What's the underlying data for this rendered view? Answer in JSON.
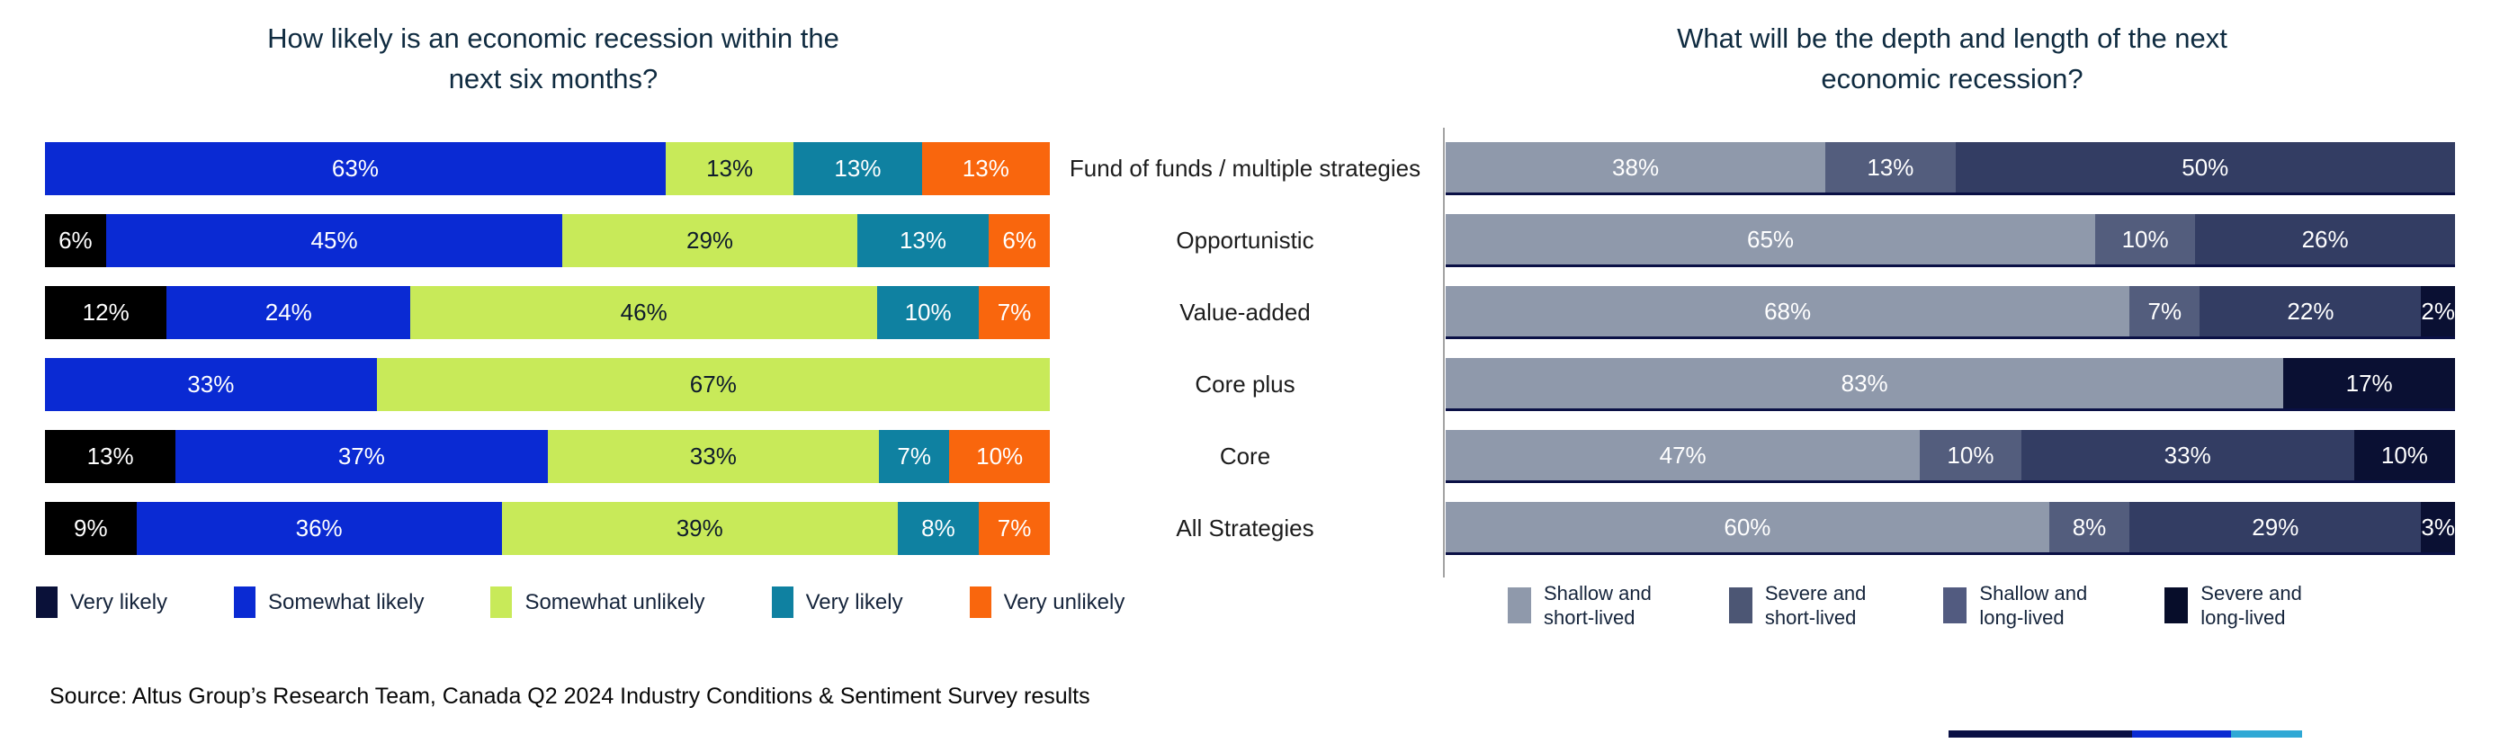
{
  "left_chart": {
    "title_line1": "How likely is an economic recession within the",
    "title_line2": "next six months?",
    "legend": [
      {
        "label": "Very likely",
        "swatch_color": "#0A1139"
      },
      {
        "label": "Somewhat likely",
        "swatch_color": "#0A2AD3"
      },
      {
        "label": "Somewhat unlikely",
        "swatch_color": "#C8EA59"
      },
      {
        "label": "Very likely",
        "swatch_color": "#0F81A1"
      },
      {
        "label": "Very unlikely",
        "swatch_color": "#F9660D"
      }
    ]
  },
  "right_chart": {
    "title_line1": "What will be the depth and length of the next",
    "title_line2": "economic recession?",
    "legend": [
      {
        "label_line1": "Shallow and",
        "label_line2": "short-lived",
        "swatch_color": "#8F99AB"
      },
      {
        "label_line1": "Severe and",
        "label_line2": "short-lived",
        "swatch_color": "#4C5674"
      },
      {
        "label_line1": "Shallow and",
        "label_line2": "long-lived",
        "swatch_color": "#525B80"
      },
      {
        "label_line1": "Severe and",
        "label_line2": "long-lived",
        "swatch_color": "#070D2A"
      }
    ]
  },
  "source_note": "Source: Altus Group’s Research Team, Canada Q2 2024 Industry Conditions & Sentiment Survey results",
  "chart_data": [
    {
      "type": "bar",
      "stacked": true,
      "orientation": "horizontal",
      "title": "How likely is an economic recession within the next six months?",
      "legend_position": "bottom",
      "grid": false,
      "categories": [
        "Fund of funds / multiple strategies",
        "Opportunistic",
        "Value-added",
        "Core plus",
        "Core",
        "All Strategies"
      ],
      "series": [
        {
          "name": "Very likely",
          "color": "#000000",
          "label_color": "#FFFFFF",
          "values": [
            0,
            6,
            12,
            0,
            13,
            9
          ]
        },
        {
          "name": "Somewhat likely",
          "color": "#0A2AD3",
          "label_color": "#FFFFFF",
          "values": [
            63,
            45,
            24,
            33,
            37,
            36
          ]
        },
        {
          "name": "Somewhat unlikely",
          "color": "#C8EA59",
          "label_color": "#0E1B2C",
          "values": [
            13,
            29,
            46,
            67,
            33,
            39
          ]
        },
        {
          "name": "Very likely",
          "color": "#0F81A1",
          "label_color": "#FFFFFF",
          "values": [
            13,
            13,
            10,
            0,
            7,
            8
          ]
        },
        {
          "name": "Very unlikely",
          "color": "#F9660D",
          "label_color": "#FFFFFF",
          "values": [
            13,
            6,
            7,
            0,
            10,
            7
          ]
        }
      ]
    },
    {
      "type": "bar",
      "stacked": true,
      "orientation": "horizontal",
      "title": "What will be the depth and length of the next economic recession?",
      "legend_position": "bottom",
      "grid": false,
      "categories": [
        "Fund of funds / multiple strategies",
        "Opportunistic",
        "Value-added",
        "Core plus",
        "Core",
        "All Strategies"
      ],
      "series": [
        {
          "name": "Shallow and short-lived",
          "color": "#8F99AB",
          "label_color": "#FFFFFF",
          "values": [
            38,
            65,
            68,
            83,
            47,
            60
          ]
        },
        {
          "name": "Severe and short-lived",
          "color": "#535D7D",
          "label_color": "#FFFFFF",
          "values": [
            13,
            10,
            7,
            0,
            10,
            8
          ]
        },
        {
          "name": "Shallow and long-lived",
          "color": "#333D63",
          "label_color": "#FFFFFF",
          "values": [
            50,
            26,
            22,
            0,
            33,
            29
          ]
        },
        {
          "name": "Severe and long-lived",
          "color": "#0A1033",
          "label_color": "#FFFFFF",
          "values": [
            0,
            0,
            2,
            17,
            10,
            3
          ]
        }
      ]
    }
  ],
  "footer_accent_bar": {
    "segments": [
      {
        "color": "#0A1045",
        "flex": 52
      },
      {
        "color": "#0B2BD2",
        "flex": 28
      },
      {
        "color": "#2FA8D5",
        "flex": 20
      }
    ]
  }
}
